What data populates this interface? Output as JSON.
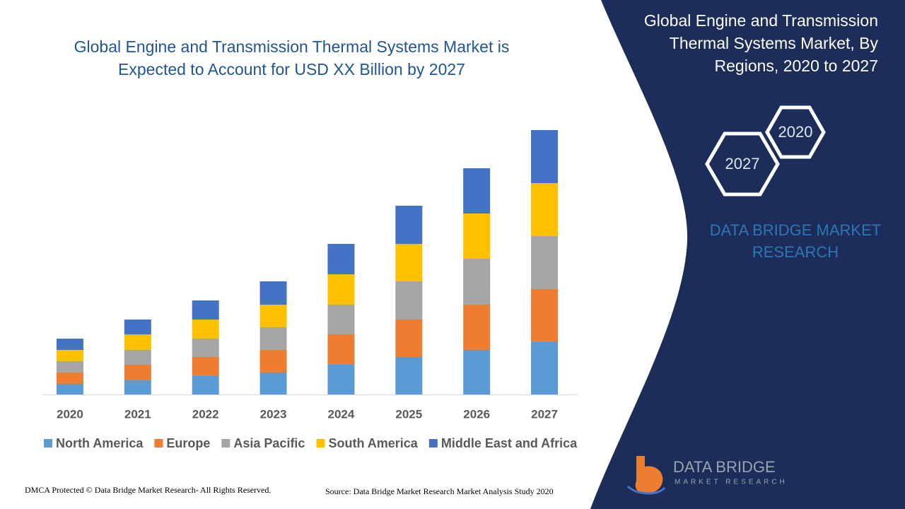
{
  "chart_data": {
    "type": "bar",
    "stacked": true,
    "title": "Global Engine and Transmission Thermal Systems Market is Expected to Account for USD XX Billion by 2027",
    "categories": [
      "2020",
      "2021",
      "2022",
      "2023",
      "2024",
      "2025",
      "2026",
      "2027"
    ],
    "series": [
      {
        "name": "North America",
        "color": "#5b9bd5",
        "values": [
          15,
          20,
          26,
          31,
          42,
          53,
          63,
          74
        ]
      },
      {
        "name": "Europe",
        "color": "#ed7d31",
        "values": [
          16,
          22,
          27,
          32,
          43,
          53,
          64,
          75
        ]
      },
      {
        "name": "Asia Pacific",
        "color": "#a5a5a5",
        "values": [
          16,
          21,
          26,
          32,
          42,
          54,
          65,
          75
        ]
      },
      {
        "name": "South America",
        "color": "#ffc000",
        "values": [
          16,
          22,
          27,
          32,
          43,
          53,
          64,
          75
        ]
      },
      {
        "name": "Middle East and Africa",
        "color": "#4472c4",
        "values": [
          16,
          21,
          27,
          33,
          43,
          54,
          64,
          75
        ]
      }
    ],
    "legend": "bottom"
  },
  "panel": {
    "title": "Global Engine and Transmission Thermal Systems Market, By Regions, 2020 to 2027",
    "hexagons": [
      "2020",
      "2027"
    ],
    "brand": "DATA BRIDGE MARKET RESEARCH"
  },
  "logo": {
    "name": "DATA BRIDGE",
    "tagline": "MARKET RESEARCH"
  },
  "footer": {
    "left": "DMCA Protected © Data Bridge Market Research- All Rights Reserved.",
    "right": "Source: Data Bridge Market Research Market Analysis Study 2020"
  }
}
